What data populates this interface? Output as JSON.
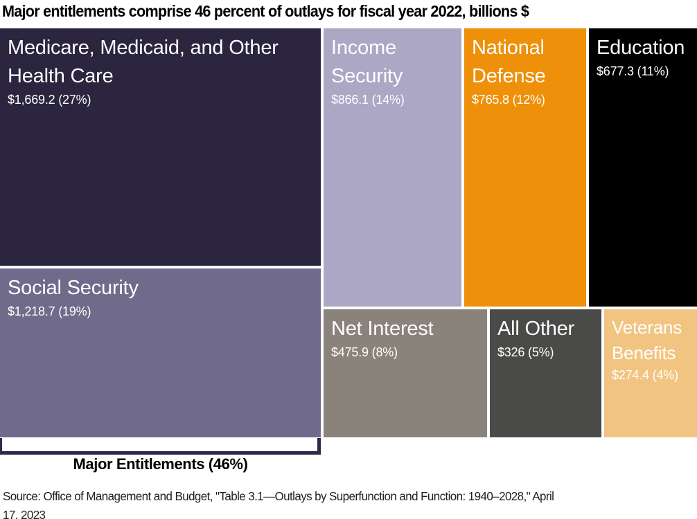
{
  "title": "Major entitlements comprise 46 percent of outlays for fiscal year 2022, billions $",
  "chart_data": {
    "type": "treemap",
    "title": "Major entitlements comprise 46 percent of outlays for fiscal year 2022, billions $",
    "unit": "billions $",
    "fiscal_year": 2022,
    "cells": [
      {
        "name": "Medicare, Medicaid, and Other Health Care",
        "value": 1669.2,
        "percent": 27,
        "value_label": "$1,669.2 (27%)",
        "color": "#2b2540",
        "text_color": "#ffffff",
        "major_entitlement": true
      },
      {
        "name": "Social Security",
        "value": 1218.7,
        "percent": 19,
        "value_label": "$1,218.7 (19%)",
        "color": "#706b8a",
        "text_color": "#ffffff",
        "major_entitlement": true
      },
      {
        "name": "Income Security",
        "value": 866.1,
        "percent": 14,
        "value_label": "$866.1 (14%)",
        "color": "#aba7c4",
        "text_color": "#ffffff",
        "major_entitlement": false
      },
      {
        "name": "National Defense",
        "value": 765.8,
        "percent": 12,
        "value_label": "$765.8 (12%)",
        "color": "#ee9009",
        "text_color": "#ffffff",
        "major_entitlement": false
      },
      {
        "name": "Education",
        "value": 677.3,
        "percent": 11,
        "value_label": "$677.3 (11%)",
        "color": "#000000",
        "text_color": "#ffffff",
        "major_entitlement": false
      },
      {
        "name": "Net Interest",
        "value": 475.9,
        "percent": 8,
        "value_label": "$475.9 (8%)",
        "color": "#8a837c",
        "text_color": "#ffffff",
        "major_entitlement": false
      },
      {
        "name": "All Other",
        "value": 326,
        "percent": 5,
        "value_label": "$326 (5%)",
        "color": "#4a4a48",
        "text_color": "#ffffff",
        "major_entitlement": false
      },
      {
        "name": "Veterans Benefits",
        "value": 274.4,
        "percent": 4,
        "value_label": "$274.4 (4%)",
        "color": "#f1c581",
        "text_color": "#ffffff",
        "major_entitlement": false
      }
    ],
    "annotation": "Major Entitlements (46%)",
    "bracket_color": "#2e294a",
    "source": "Source: Office of Management and Budget, \"Table 3.1—Outlays by Superfunction and Function: 1940–2028,\" April 17, 2023"
  },
  "footer": {
    "bracket_label": "Major Entitlements (46%)",
    "source_line1": "Source: Office of Management and Budget, \"Table 3.1—Outlays by Superfunction and Function: 1940–2028,\" April",
    "source_line2": "17, 2023"
  }
}
